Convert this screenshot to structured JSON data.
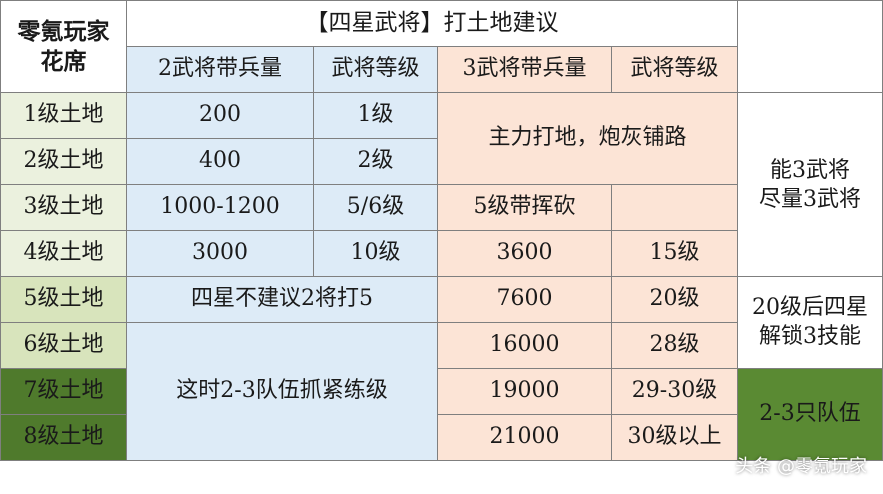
{
  "table": {
    "corner": "零氪玩家\n花席",
    "title": "【四星武将】打土地建议",
    "headers": {
      "two_hero_troops": "2武将带兵量",
      "two_hero_level": "武将等级",
      "three_hero_troops": "3武将带兵量",
      "three_hero_level": "武将等级"
    },
    "rows": [
      {
        "land": "1级土地",
        "two_troops": "200",
        "two_level": "1级"
      },
      {
        "land": "2级土地",
        "two_troops": "400",
        "two_level": "2级"
      },
      {
        "land": "3级土地",
        "two_troops": "1000-1200",
        "two_level": "5/6级",
        "three_troops": "5级带挥砍"
      },
      {
        "land": "4级土地",
        "two_troops": "3000",
        "two_level": "10级",
        "three_troops": "3600",
        "three_level": "15级"
      },
      {
        "land": "5级土地",
        "three_troops": "7600",
        "three_level": "20级"
      },
      {
        "land": "6级土地",
        "three_troops": "16000",
        "three_level": "28级"
      },
      {
        "land": "7级土地",
        "three_troops": "19000",
        "three_level": "29-30级"
      },
      {
        "land": "8级土地",
        "three_troops": "21000",
        "three_level": "30级以上"
      }
    ],
    "merged": {
      "main_force": "主力打地，炮灰铺路",
      "no_two_for_five": "四星不建议2将打5",
      "level_up_teams": "这时2-3队伍抓紧练级",
      "three_hero_tip": "能3武将\n尽量3武将",
      "unlock_skill": "20级后四星\n解锁3技能",
      "teams_count": "2-3只队伍"
    }
  },
  "watermark": "头条 @零氪玩家"
}
